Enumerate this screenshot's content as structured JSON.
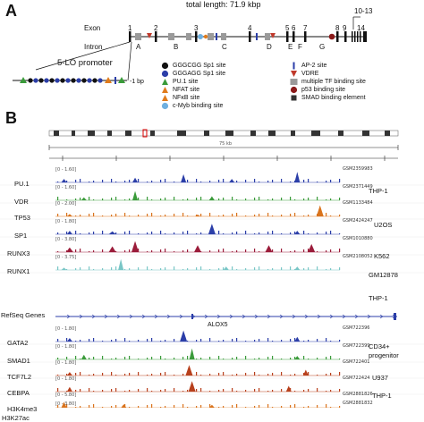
{
  "panel_a": {
    "letter": "A",
    "total_length": "total length: 71.9 kbp",
    "exon_label": "Exon",
    "intron_label": "Intron",
    "exon_numbers": [
      "1",
      "2",
      "3",
      "4",
      "5",
      "6",
      "7",
      "8",
      "9",
      "10-13",
      "14"
    ],
    "intron_letters": [
      "A",
      "B",
      "C",
      "D",
      "E",
      "F",
      "G"
    ],
    "promoter_label": "5-LO promoter",
    "promoter_end": "-1 bp",
    "legend": [
      {
        "symbol": "black-circle",
        "label": "GGGCGG Sp1 site"
      },
      {
        "symbol": "blue-circle",
        "label": "GGGAGG Sp1 site"
      },
      {
        "symbol": "green-triangle",
        "label": "PU.1 site"
      },
      {
        "symbol": "orange-triangle",
        "label": "NFAT site"
      },
      {
        "symbol": "orange-triangle",
        "label": "NFκB site"
      },
      {
        "symbol": "lightblue-circle",
        "label": "c-Myb binding site"
      },
      {
        "symbol": "blue-bar",
        "label": "AP-2 site"
      },
      {
        "symbol": "red-down-triangle",
        "label": "VDRE"
      },
      {
        "symbol": "gray-square",
        "label": "multiple TF binding site"
      },
      {
        "symbol": "darkred-circle",
        "label": "p53 binding site"
      },
      {
        "symbol": "dark-square",
        "label": "SMAD binding element"
      }
    ]
  },
  "panel_b": {
    "letter": "B",
    "scale_label": "75 kb",
    "refseq_label": "RefSeq Genes",
    "gene_label": "ALOX5",
    "tracks": [
      {
        "name": "PU.1",
        "range": "[0 - 1.60]",
        "accession": "GSM2359983",
        "color": "#2b3ea8"
      },
      {
        "name": "VDR",
        "range": "[0 - 1.60]",
        "accession": "GSM2371449",
        "color": "#3a9b3a"
      },
      {
        "name": "TP53",
        "range": "[0 - 2.00]",
        "accession": "GSM1133484",
        "color": "#d9731c"
      },
      {
        "name": "SP1",
        "range": "[0 - 1.80]",
        "accession": "GSM2424247",
        "color": "#2b3ea8"
      },
      {
        "name": "RUNX3",
        "range": "[0 - 3.80]",
        "accession": "GSM1010880",
        "color": "#9b1c3a"
      },
      {
        "name": "RUNX1",
        "range": "[0 - 3.75]",
        "accession": "GSM2108052",
        "color": "#79c6c6"
      },
      {
        "name": "GATA2",
        "range": "[0 - 1.80]",
        "accession": "GSM722396",
        "color": "#2b3ea8"
      },
      {
        "name": "SMAD1",
        "range": "[0 - 1.80]",
        "accession": "GSM722399",
        "color": "#3a9b3a"
      },
      {
        "name": "TCF7L2",
        "range": "[0 - 1.80]",
        "accession": "GSM722401",
        "color": "#b8401c"
      },
      {
        "name": "CEBPA",
        "range": "[0 - 1.80]",
        "accession": "GSM722424",
        "color": "#b8401c"
      },
      {
        "name": "H3K4me3",
        "range": "[0 - 5.80]",
        "accession": "GSM2881826",
        "color": "#d9731c"
      },
      {
        "name": "H3K27ac",
        "range": "[0 - 3.80]",
        "accession": "GSM2881832",
        "color": "#9b1c3a"
      }
    ],
    "cell_lines": [
      "THP-1",
      "U2OS",
      "K562",
      "GM12878",
      "THP-1",
      "CD34+",
      "progenitor",
      "U937",
      "THP-1"
    ]
  }
}
